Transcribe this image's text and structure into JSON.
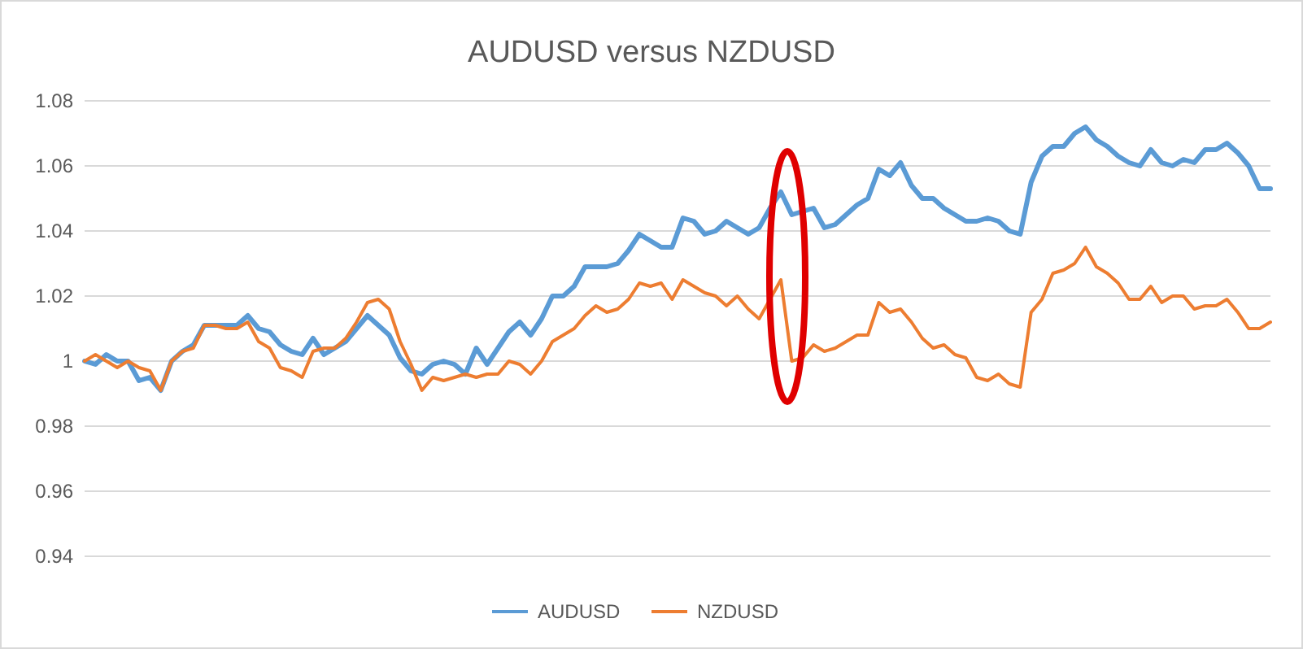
{
  "chart_data": {
    "type": "line",
    "title": "AUDUSD versus NZDUSD",
    "categories": [
      null,
      null,
      null,
      null,
      null,
      null,
      null,
      null,
      null,
      null,
      null,
      null,
      null,
      null,
      null,
      null,
      null,
      null,
      null,
      null,
      null,
      null,
      null,
      null,
      null,
      null,
      null,
      null,
      null,
      null,
      null,
      null,
      null,
      null,
      null,
      null,
      null,
      null,
      null,
      null,
      null,
      null,
      null,
      null,
      null,
      null,
      null,
      null,
      null,
      null,
      null,
      null,
      null,
      null,
      null,
      null,
      null,
      null,
      null,
      null,
      null,
      null,
      null,
      null,
      null,
      null,
      null,
      null,
      null,
      null,
      null,
      null,
      null,
      null,
      null,
      null,
      null,
      null,
      null,
      null,
      null,
      null,
      null,
      null,
      null,
      null,
      null,
      null,
      null,
      null,
      null,
      null,
      null,
      null,
      null,
      null,
      null,
      null,
      null,
      null,
      null,
      null,
      null,
      null,
      null,
      null,
      null,
      null,
      null,
      null
    ],
    "series": [
      {
        "name": "AUDUSD",
        "color": "#5b9bd5",
        "values": [
          1.0,
          0.999,
          1.002,
          1.0,
          1.0,
          0.994,
          0.995,
          0.991,
          1.0,
          1.003,
          1.005,
          1.011,
          1.011,
          1.011,
          1.011,
          1.014,
          1.01,
          1.009,
          1.005,
          1.003,
          1.002,
          1.007,
          1.002,
          1.004,
          1.006,
          1.01,
          1.014,
          1.011,
          1.008,
          1.001,
          0.997,
          0.996,
          0.999,
          1.0,
          0.999,
          0.996,
          1.004,
          0.999,
          1.004,
          1.009,
          1.012,
          1.008,
          1.013,
          1.02,
          1.02,
          1.023,
          1.029,
          1.029,
          1.029,
          1.03,
          1.034,
          1.039,
          1.037,
          1.035,
          1.035,
          1.044,
          1.043,
          1.039,
          1.04,
          1.043,
          1.041,
          1.039,
          1.041,
          1.047,
          1.052,
          1.045,
          1.046,
          1.047,
          1.041,
          1.042,
          1.045,
          1.048,
          1.05,
          1.059,
          1.057,
          1.061,
          1.054,
          1.05,
          1.05,
          1.047,
          1.045,
          1.043,
          1.043,
          1.044,
          1.043,
          1.04,
          1.039,
          1.055,
          1.063,
          1.066,
          1.066,
          1.07,
          1.072,
          1.068,
          1.066,
          1.063,
          1.061,
          1.06,
          1.065,
          1.061,
          1.06,
          1.062,
          1.061,
          1.065,
          1.065,
          1.067,
          1.064,
          1.06,
          1.053,
          1.053
        ]
      },
      {
        "name": "NZDUSD",
        "color": "#ed7d31",
        "values": [
          1.0,
          1.002,
          1.0,
          0.998,
          1.0,
          0.998,
          0.997,
          0.991,
          1.0,
          1.003,
          1.004,
          1.011,
          1.011,
          1.01,
          1.01,
          1.012,
          1.006,
          1.004,
          0.998,
          0.997,
          0.995,
          1.003,
          1.004,
          1.004,
          1.007,
          1.012,
          1.018,
          1.019,
          1.016,
          1.006,
          0.999,
          0.991,
          0.995,
          0.994,
          0.995,
          0.996,
          0.995,
          0.996,
          0.996,
          1.0,
          0.999,
          0.996,
          1.0,
          1.006,
          1.008,
          1.01,
          1.014,
          1.017,
          1.015,
          1.016,
          1.019,
          1.024,
          1.023,
          1.024,
          1.019,
          1.025,
          1.023,
          1.021,
          1.02,
          1.017,
          1.02,
          1.016,
          1.013,
          1.019,
          1.025,
          1.0,
          1.001,
          1.005,
          1.003,
          1.004,
          1.006,
          1.008,
          1.008,
          1.018,
          1.015,
          1.016,
          1.012,
          1.007,
          1.004,
          1.005,
          1.002,
          1.001,
          0.995,
          0.994,
          0.996,
          0.993,
          0.992,
          1.015,
          1.019,
          1.027,
          1.028,
          1.03,
          1.035,
          1.029,
          1.027,
          1.024,
          1.019,
          1.019,
          1.023,
          1.018,
          1.02,
          1.02,
          1.016,
          1.017,
          1.017,
          1.019,
          1.015,
          1.01,
          1.01,
          1.012
        ]
      }
    ],
    "ylim": [
      0.94,
      1.08
    ],
    "yticks": [
      0.94,
      0.96,
      0.98,
      1,
      1.02,
      1.04,
      1.06,
      1.08
    ],
    "grid": "y",
    "legend": "bottom",
    "tick_labels": "y",
    "marker": "none",
    "line_style": "solid"
  }
}
